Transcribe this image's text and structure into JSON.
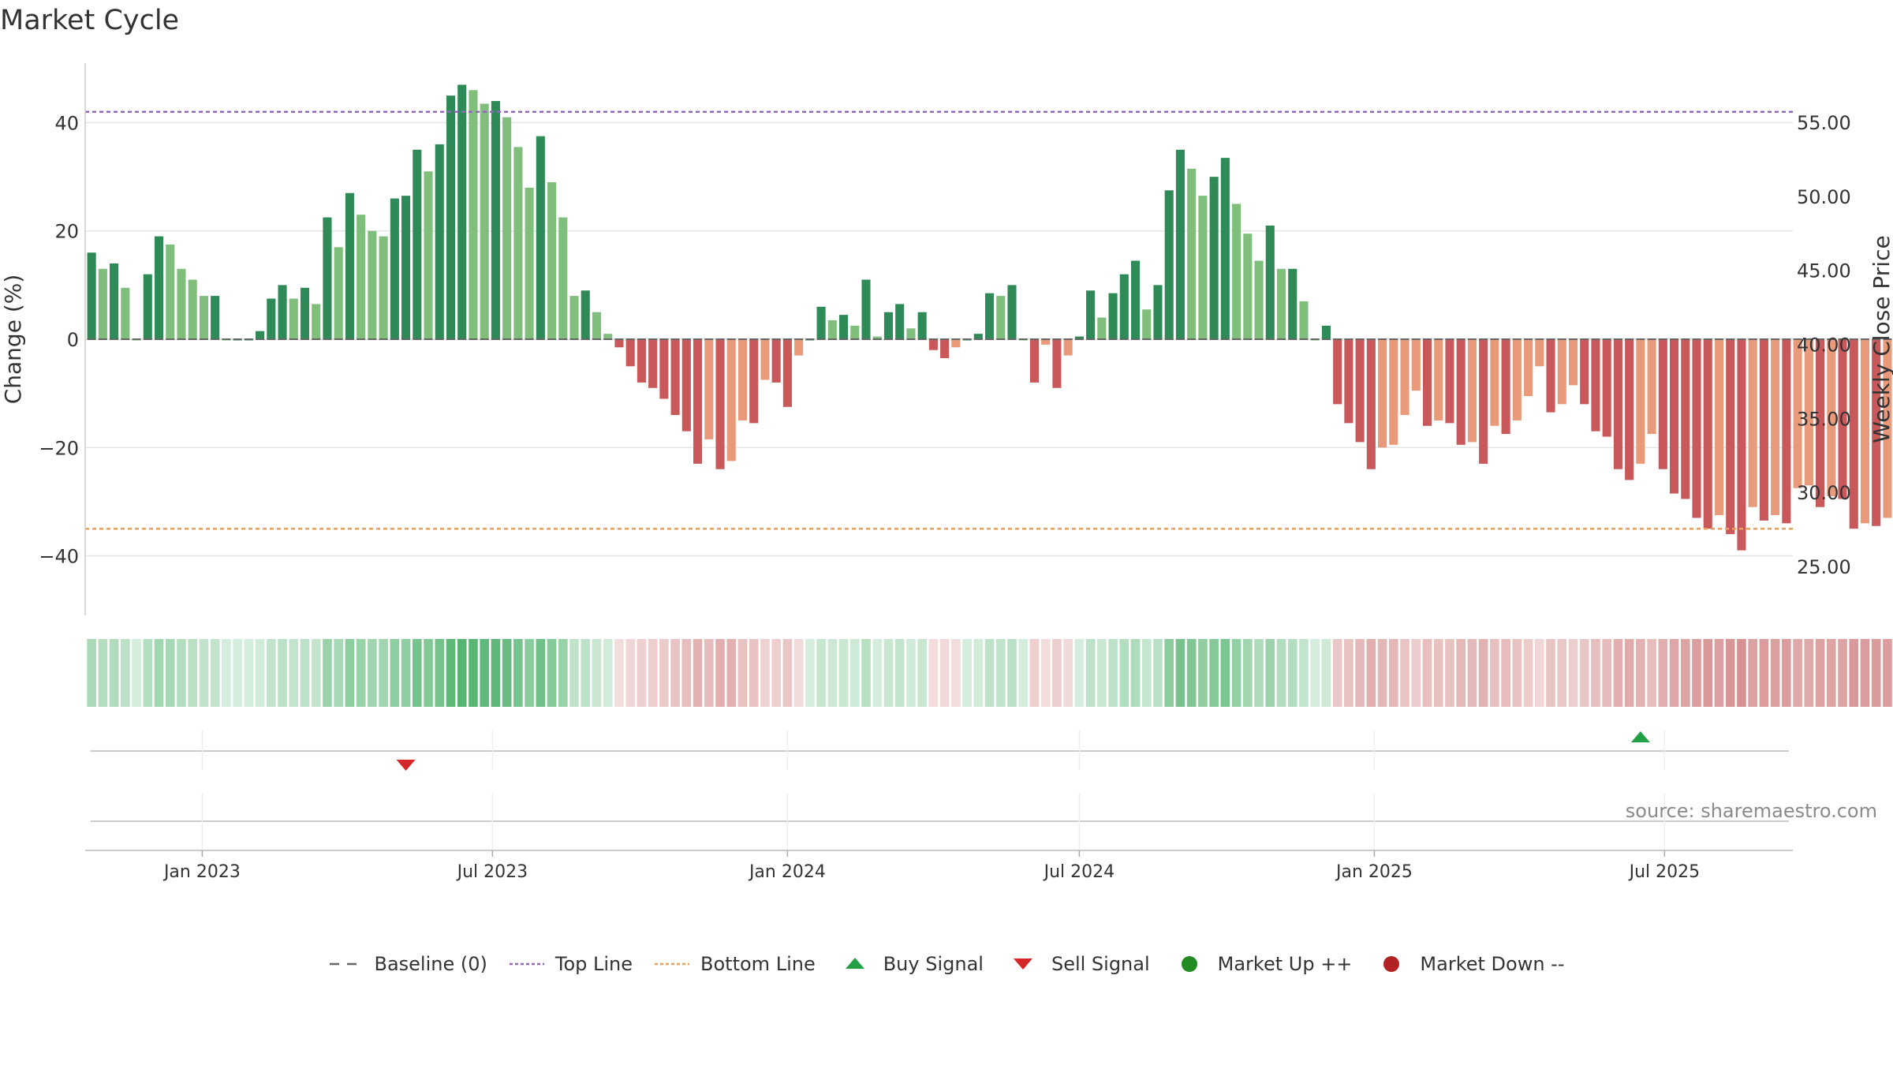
{
  "title": "Market Cycle",
  "source": "source: sharemaestro.com",
  "colors": {
    "pos_dark": "#2e8b57",
    "pos_light": "#7fbf7b",
    "neg_dark": "#c8585a",
    "neg_light": "#e89a7a",
    "top_line": "#9467bd",
    "bottom_line": "#e8a05a",
    "baseline": "#666666",
    "buy": "#22a045",
    "sell": "#d62728",
    "up": "#228b22",
    "down": "#b22222",
    "grid": "#e6e6e6",
    "axis_text": "#333333"
  },
  "legend": [
    {
      "key": "baseline",
      "label": "Baseline (0)"
    },
    {
      "key": "top",
      "label": "Top Line"
    },
    {
      "key": "bottom",
      "label": "Bottom Line"
    },
    {
      "key": "buy",
      "label": "Buy Signal"
    },
    {
      "key": "sell",
      "label": "Sell Signal"
    },
    {
      "key": "up",
      "label": "Market Up ++"
    },
    {
      "key": "down",
      "label": "Market Down --"
    }
  ],
  "chart_data": {
    "type": "bar",
    "title": "Market Cycle",
    "ylabel": "Change (%)",
    "y2label": "Weekly Close Price",
    "ylim": [
      -51,
      51
    ],
    "y2lim": [
      21.7,
      59.0
    ],
    "yticks": [
      -40,
      -20,
      0,
      20,
      40
    ],
    "yticklabels": [
      "−40",
      "−20",
      "0",
      "20",
      "40"
    ],
    "y2ticks": [
      25,
      30,
      35,
      40,
      45,
      50,
      55
    ],
    "y2ticklabels": [
      "25.00",
      "30.00",
      "35.00",
      "40.00",
      "45.00",
      "50.00",
      "55.00"
    ],
    "top_line": 42,
    "bottom_line": -35,
    "baseline": 0,
    "x_start": "2022-10-24",
    "x_interval_days": 7,
    "xlim": [
      "2022-10-20",
      "2025-09-19"
    ],
    "xticks": [
      "2023-01-01",
      "2023-07-01",
      "2024-01-01",
      "2024-07-01",
      "2025-01-01",
      "2025-07-01"
    ],
    "xticklabels": [
      "Jan 2023",
      "Jul 2023",
      "Jan 2024",
      "Jul 2024",
      "Jan 2025",
      "Jul 2025"
    ],
    "grid": true,
    "legend_position": "bottom-center",
    "values": [
      16,
      13,
      14,
      9.5,
      0,
      12,
      19,
      17.5,
      13,
      11,
      8,
      8,
      0,
      0,
      0,
      1.5,
      7.5,
      10,
      7.5,
      9.5,
      6.5,
      22.5,
      17,
      27,
      23,
      20,
      19,
      26,
      26.5,
      35,
      31,
      36,
      45,
      47,
      46,
      43.5,
      44,
      41,
      35.5,
      28,
      37.5,
      29,
      22.5,
      8,
      9,
      5,
      1,
      -1.5,
      -5,
      -8,
      -9,
      -11,
      -14,
      -17,
      -23,
      -18.5,
      -24,
      -22.5,
      -15,
      -15.5,
      -7.5,
      -8,
      -12.5,
      -3,
      0,
      6,
      3.5,
      4.5,
      2.5,
      11,
      0.5,
      5,
      6.5,
      2,
      5,
      -2,
      -3.5,
      -1.5,
      0,
      1,
      8.5,
      8,
      10,
      0,
      -8,
      -1,
      -9,
      -3,
      0.5,
      9,
      4,
      8.5,
      12,
      14.5,
      5.5,
      10,
      27.5,
      35,
      31.5,
      26.5,
      30,
      33.5,
      25,
      19.5,
      14.5,
      21,
      13,
      13,
      7,
      0,
      2.5,
      -12,
      -15.5,
      -19,
      -24,
      -20,
      -19.5,
      -14,
      -9.5,
      -16,
      -15,
      -15.5,
      -19.5,
      -19,
      -23,
      -16,
      -17.5,
      -15,
      -10.5,
      -5,
      -13.5,
      -12,
      -8.5,
      -12,
      -17,
      -18,
      -24,
      -26,
      -23,
      -17.5,
      -24,
      -28.5,
      -29.5,
      -33,
      -35,
      -32.5,
      -36,
      -39,
      -31,
      -33.5,
      -32.5,
      -34,
      -27.5,
      -27,
      -31,
      -29,
      -29.5,
      -35,
      -34,
      -34.5,
      -33,
      -27.5
    ],
    "buy_signals": [
      "2025-06-16"
    ],
    "sell_signals": [
      "2023-05-08"
    ]
  }
}
